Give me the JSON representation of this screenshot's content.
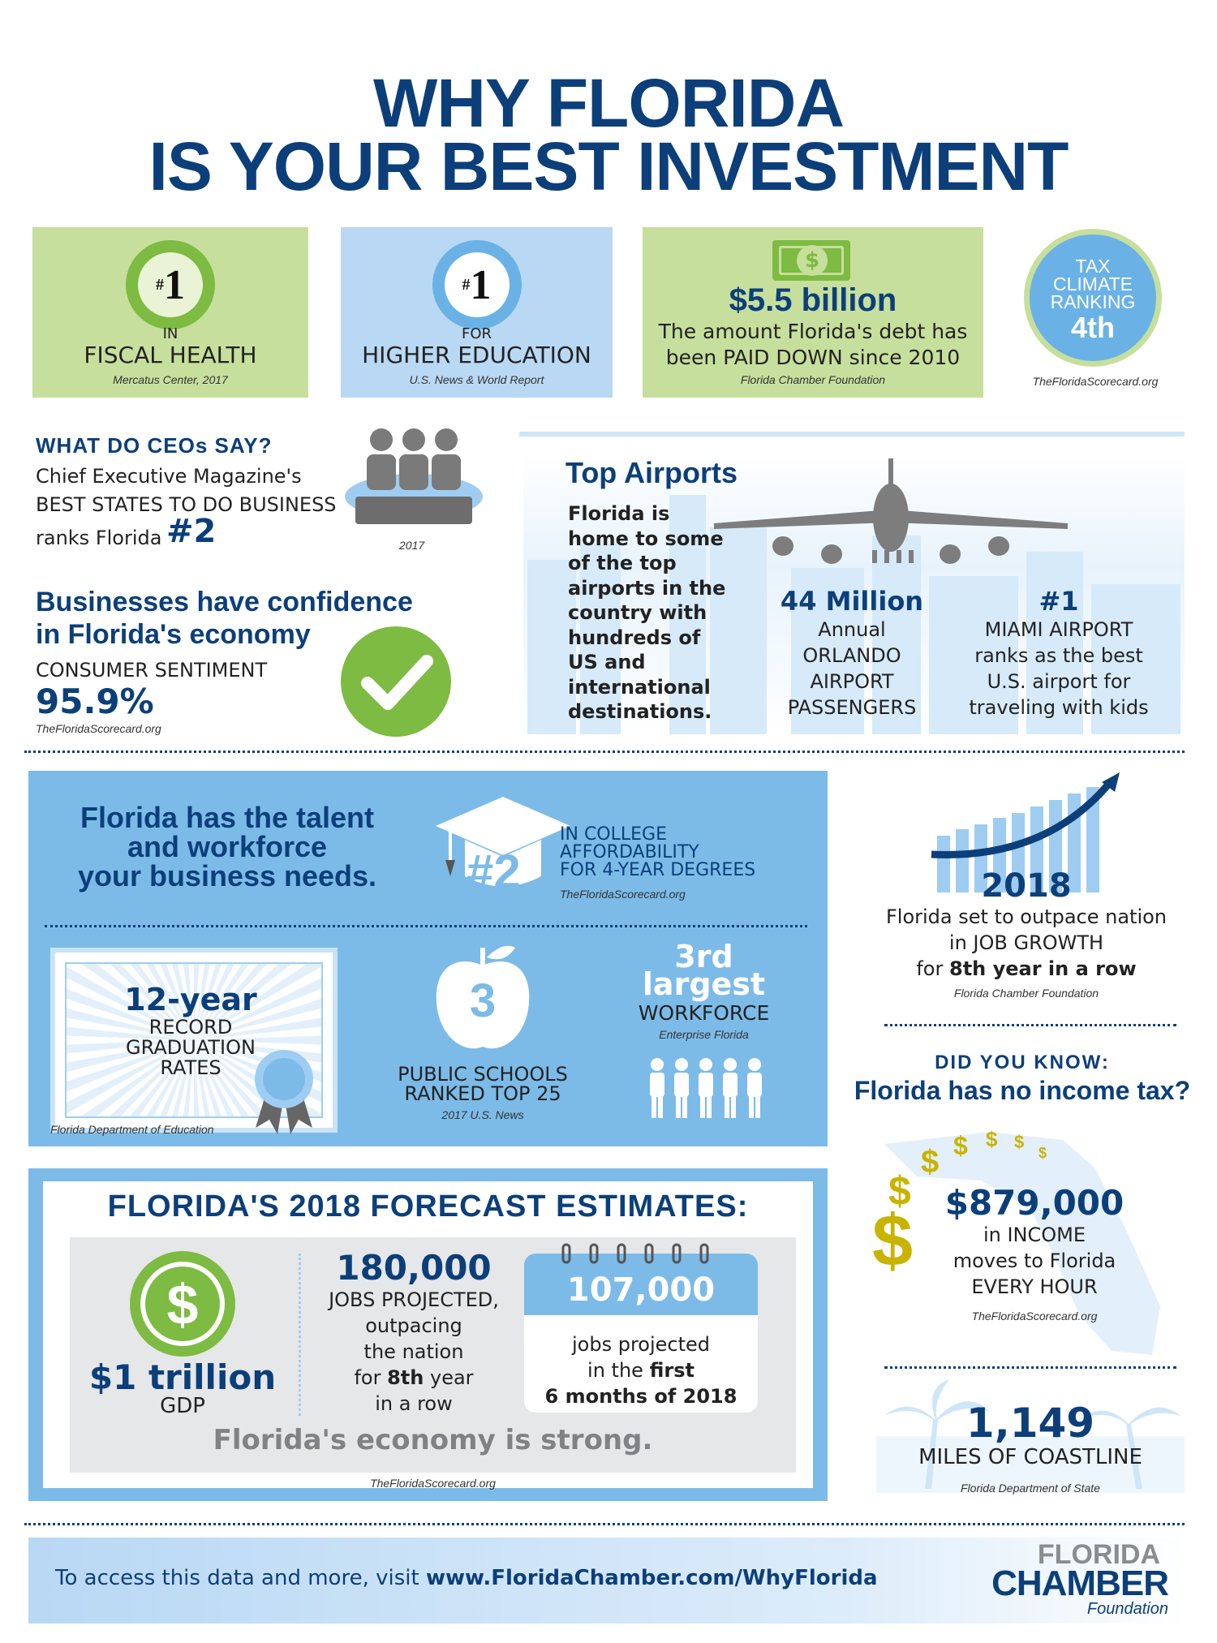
{
  "title": {
    "line1": "WHY FLORIDA",
    "line2": "IS YOUR BEST INVESTMENT"
  },
  "stats": [
    {
      "rank": "1",
      "prefix": "#",
      "label_small": "IN",
      "label_big": "FISCAL HEALTH",
      "source": "Mercatus Center, 2017"
    },
    {
      "rank": "1",
      "prefix": "#",
      "label_small": "FOR",
      "label_big": "HIGHER EDUCATION",
      "source": "U.S. News & World Report"
    },
    {
      "amount": "$5.5 billion",
      "text1": "The amount Florida's debt has",
      "text2": "been PAID DOWN since 2010",
      "source": "Florida Chamber Foundation"
    },
    {
      "l1": "TAX",
      "l2": "CLIMATE",
      "l3": "RANKING",
      "rank": "4th",
      "source": "TheFloridaScorecard.org"
    }
  ],
  "ceo": {
    "heading": "WHAT DO CEOs SAY?",
    "line1": "Chief Executive Magazine's",
    "line2": "BEST STATES TO DO BUSINESS",
    "line3": "ranks Florida",
    "rank": "#2",
    "year": "2017"
  },
  "confidence": {
    "heading1": "Businesses have confidence",
    "heading2": "in Florida's economy",
    "label": "CONSUMER SENTIMENT",
    "value": "95.9%",
    "source": "TheFloridaScorecard.org"
  },
  "airports": {
    "heading": "Top Airports",
    "desc": [
      "Florida is",
      "home to some",
      "of the top",
      "airports in the",
      "country with",
      "hundreds of",
      "US and",
      "international",
      "destinations."
    ],
    "stat1": {
      "value": "44 Million",
      "lines": [
        "Annual",
        "ORLANDO",
        "AIRPORT",
        "PASSENGERS"
      ]
    },
    "stat2": {
      "value": "#1",
      "lines": [
        "MIAMI AIRPORT",
        "ranks as the best",
        "U.S. airport for",
        "traveling with kids"
      ]
    }
  },
  "talent": {
    "heading": [
      "Florida has the talent",
      "and workforce",
      "your business needs."
    ],
    "rank": "#2",
    "afford": [
      "IN COLLEGE",
      "AFFORDABILITY",
      "FOR 4-YEAR DEGREES"
    ],
    "afford_source": "TheFloridaScorecard.org",
    "grad": {
      "value": "12-year",
      "lines": [
        "RECORD",
        "GRADUATION",
        "RATES"
      ],
      "source": "Florida Department of Education"
    },
    "schools": {
      "value": "3",
      "lines": [
        "PUBLIC SCHOOLS",
        "RANKED TOP 25"
      ],
      "source": "2017 U.S. News"
    },
    "workforce": {
      "value1": "3rd",
      "value2": "largest",
      "label": "WORKFORCE",
      "source": "Enterprise Florida"
    }
  },
  "jobgrowth": {
    "year": "2018",
    "line1": "Florida set to outpace nation",
    "line2": "in JOB GROWTH",
    "line3a": "for ",
    "line3b": "8th year in a row",
    "source": "Florida Chamber Foundation"
  },
  "forecast": {
    "heading": "FLORIDA'S 2018 FORECAST ESTIMATES:",
    "gdp_value": "$1 trillion",
    "gdp_label": "GDP",
    "dollar": "$",
    "jobs_value": "180,000",
    "jobs_lines": [
      "JOBS PROJECTED,",
      "outpacing",
      "the nation"
    ],
    "jobs_l4a": "for ",
    "jobs_l4b": "8th",
    "jobs_l4c": " year",
    "jobs_l5": "in a row",
    "cal_value": "107,000",
    "cal_l1": "jobs projected",
    "cal_l2a": "in the ",
    "cal_l2b": "first",
    "cal_l3": "6 months of 2018",
    "strong": "Florida's economy is strong.",
    "source": "TheFloridaScorecard.org"
  },
  "income": {
    "heading1": "DID YOU KNOW:",
    "heading2": "Florida has no income tax?",
    "value": "$879,000",
    "lines": [
      "in INCOME",
      "moves to Florida",
      "EVERY HOUR"
    ],
    "source": "TheFloridaScorecard.org"
  },
  "coast": {
    "value": "1,149",
    "label": "MILES OF COASTLINE",
    "source": "Florida Department of State"
  },
  "footer": {
    "text_a": "To access this data and more, visit ",
    "text_b": "www.FloridaChamber.com/WhyFlorida",
    "logo1": "FLORIDA",
    "logo2": "CHAMBER",
    "logo3": "Foundation"
  },
  "colors": {
    "navy": "#0c3f7a",
    "green": "#7dbb42",
    "lightgreen": "#c7df9c",
    "lightblue": "#b9d8f4",
    "midblue": "#7cbbe8"
  }
}
